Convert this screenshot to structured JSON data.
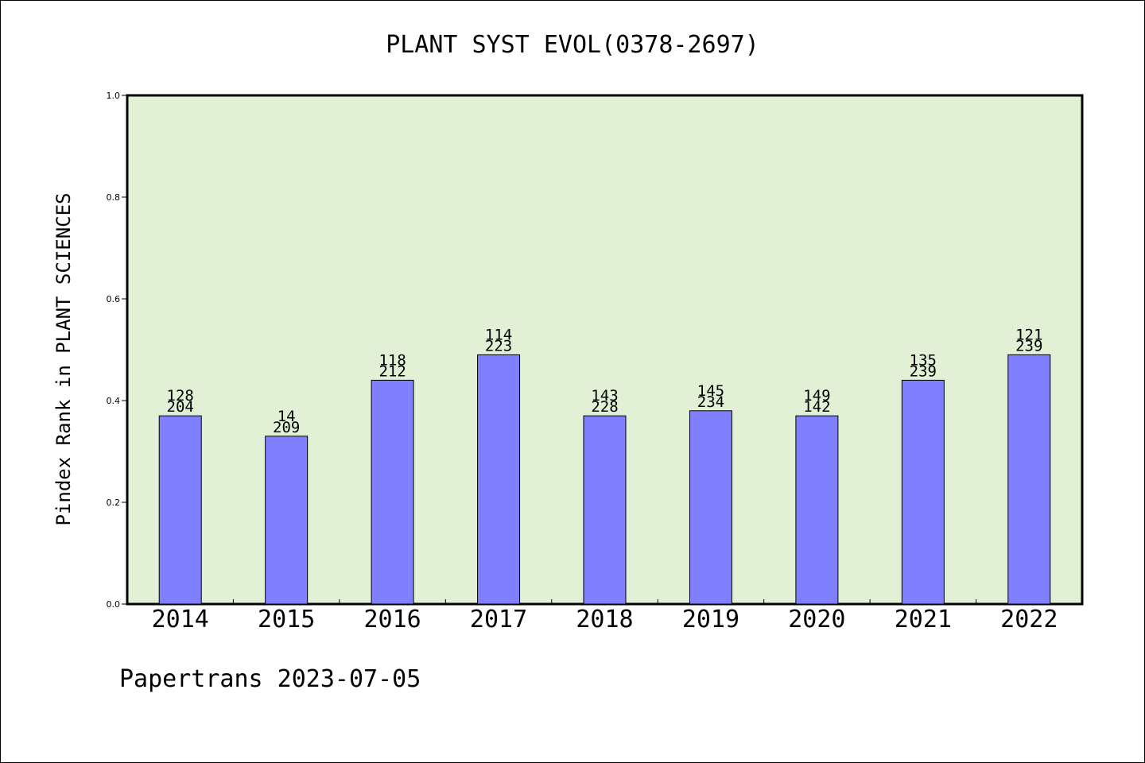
{
  "chart_data": {
    "type": "bar",
    "title": "PLANT SYST EVOL(0378-2697)",
    "ylabel": "Pindex Rank in PLANT SCIENCES",
    "xlabel": "",
    "categories": [
      "2014",
      "2015",
      "2016",
      "2017",
      "2018",
      "2019",
      "2020",
      "2021",
      "2022"
    ],
    "values": [
      0.37,
      0.33,
      0.44,
      0.49,
      0.37,
      0.38,
      0.37,
      0.44,
      0.49
    ],
    "labels_top": [
      "128",
      "14",
      "118",
      "114",
      "143",
      "145",
      "149",
      "135",
      "121"
    ],
    "labels_bottom": [
      "204",
      "209",
      "212",
      "223",
      "228",
      "234",
      "142",
      "239",
      "239"
    ],
    "ylim": [
      0,
      1.0
    ],
    "yticks": [
      "0.0",
      "0.2",
      "0.4",
      "0.6",
      "0.8",
      "1.0"
    ],
    "grid": false,
    "colors": {
      "plot_bg": "#e2f0d6",
      "bar": "#8080ff",
      "bar_edge": "#000000"
    }
  },
  "footer": {
    "text": "Papertrans 2023-07-05"
  }
}
